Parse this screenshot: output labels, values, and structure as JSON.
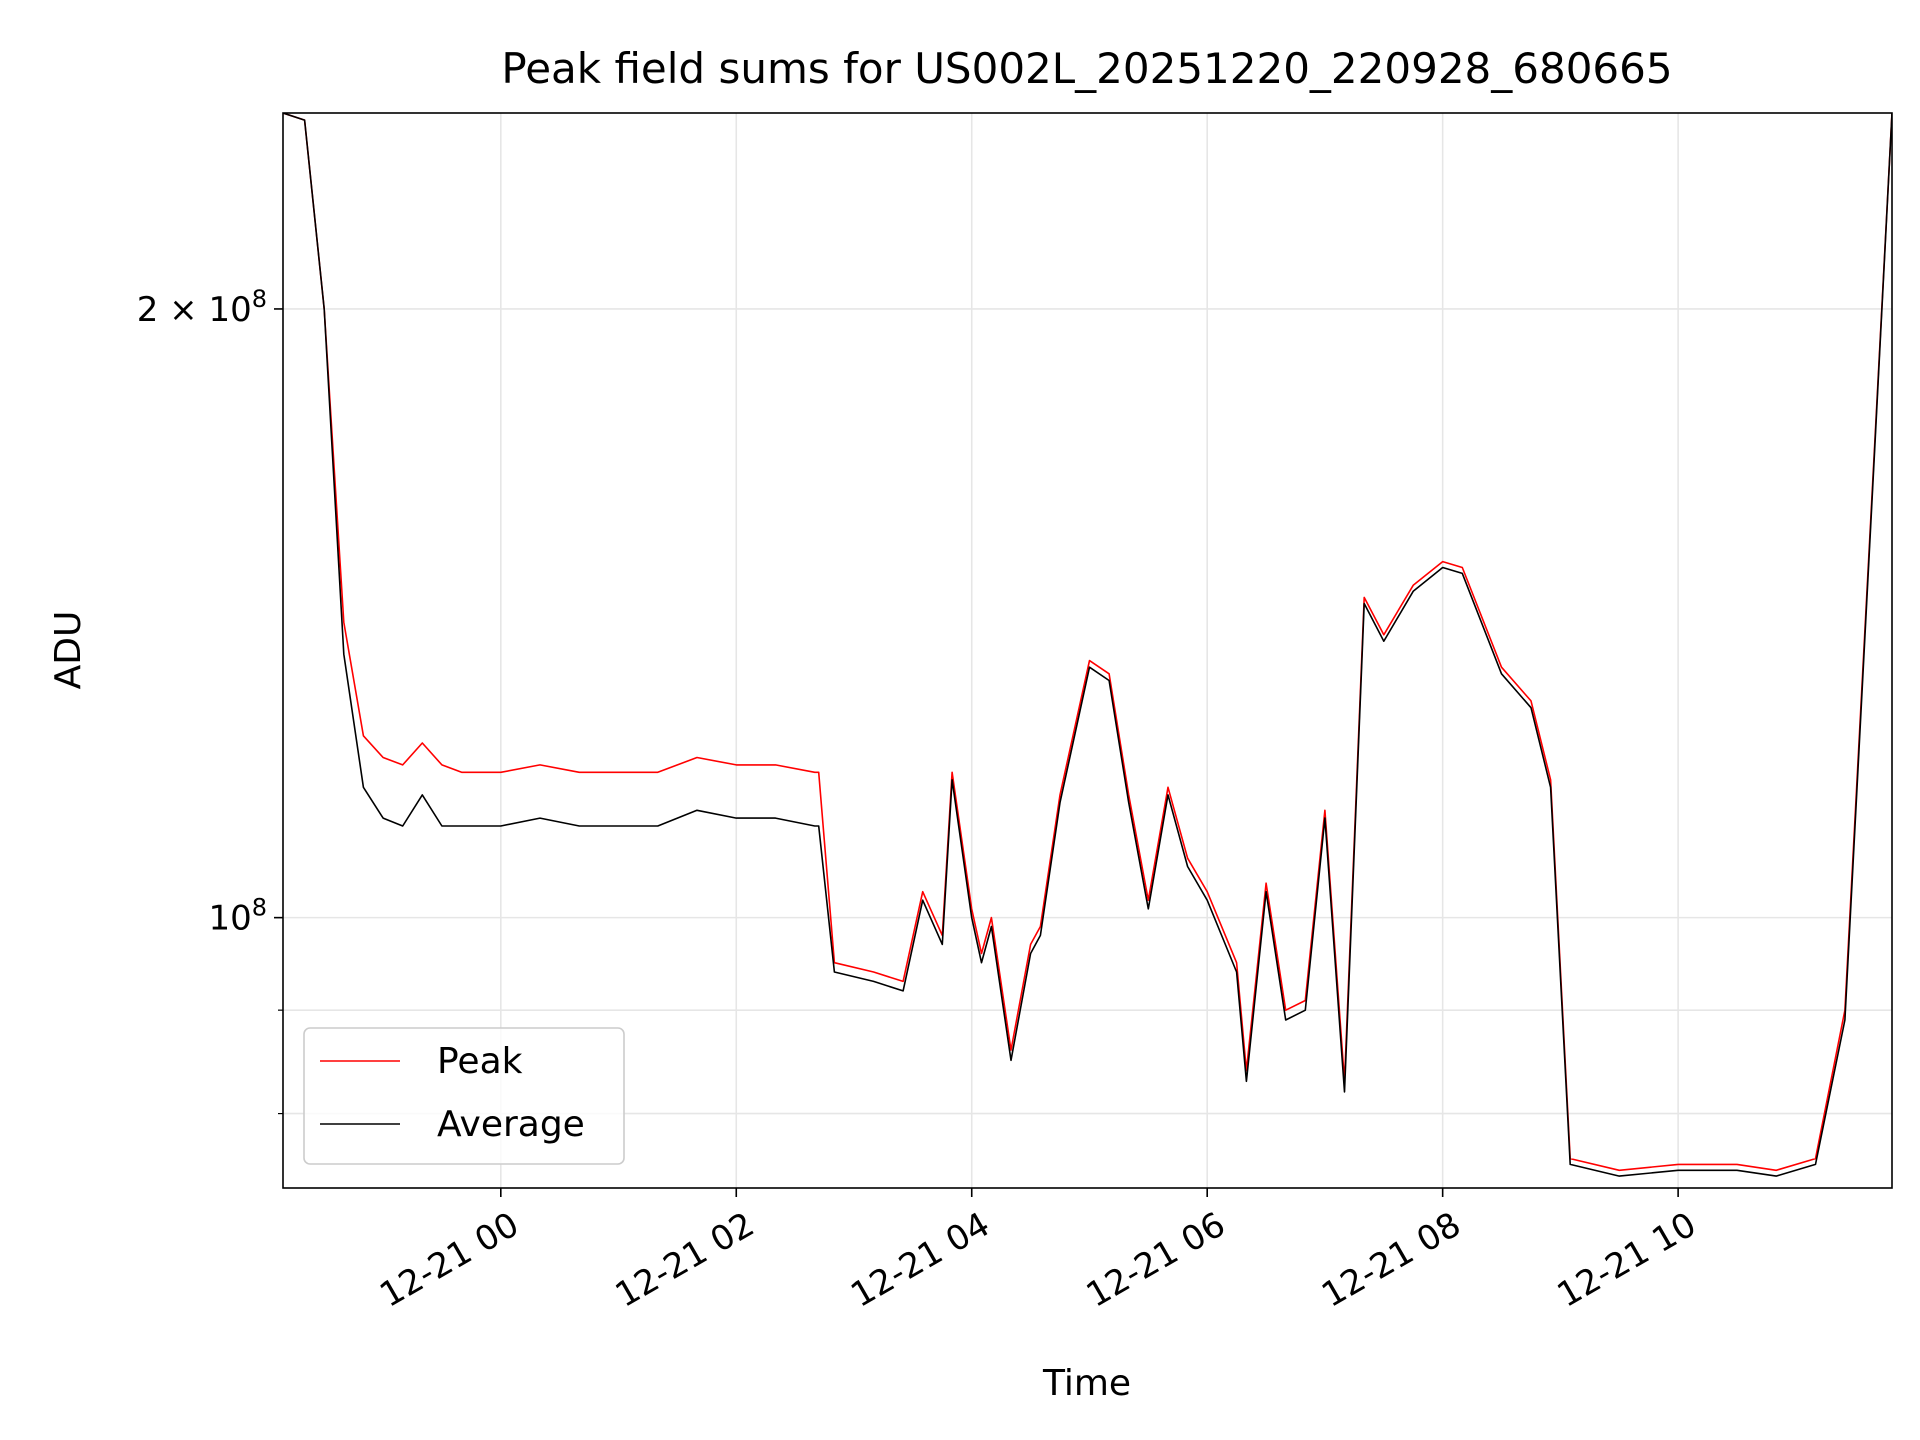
{
  "chart_data": {
    "type": "line",
    "title": "Peak field sums for US002L_20251220_220928_680665",
    "xlabel": "Time",
    "ylabel": "ADU",
    "y_scale": "log",
    "ylim": [
      73500000,
      250000000
    ],
    "xlim": [
      "2025-12-20 22:09",
      "2025-12-21 11:49"
    ],
    "grid": true,
    "legend_position": "lower left",
    "x_ticks": [
      {
        "t": "2025-12-21 00:00",
        "label": "12-21 00"
      },
      {
        "t": "2025-12-21 02:00",
        "label": "12-21 02"
      },
      {
        "t": "2025-12-21 04:00",
        "label": "12-21 04"
      },
      {
        "t": "2025-12-21 06:00",
        "label": "12-21 06"
      },
      {
        "t": "2025-12-21 08:00",
        "label": "12-21 08"
      },
      {
        "t": "2025-12-21 10:00",
        "label": "12-21 10"
      }
    ],
    "y_ticks": [
      {
        "value": 100000000,
        "label_base": "10",
        "label_exp": "8",
        "label_coef": ""
      },
      {
        "value": 200000000,
        "label_base": "10",
        "label_exp": "8",
        "label_coef": "2 × "
      }
    ],
    "y_minor_ticks": [
      80000000,
      90000000
    ],
    "series": [
      {
        "name": "Peak",
        "color": "#ff0000",
        "x": [
          "2025-12-20 22:09",
          "2025-12-20 22:20",
          "2025-12-20 22:30",
          "2025-12-20 22:40",
          "2025-12-20 22:50",
          "2025-12-20 23:00",
          "2025-12-20 23:10",
          "2025-12-20 23:20",
          "2025-12-20 23:30",
          "2025-12-20 23:40",
          "2025-12-20 23:50",
          "2025-12-21 00:00",
          "2025-12-21 00:20",
          "2025-12-21 00:40",
          "2025-12-21 01:00",
          "2025-12-21 01:20",
          "2025-12-21 01:40",
          "2025-12-21 02:00",
          "2025-12-21 02:20",
          "2025-12-21 02:40",
          "2025-12-21 02:42",
          "2025-12-21 02:50",
          "2025-12-21 03:10",
          "2025-12-21 03:25",
          "2025-12-21 03:35",
          "2025-12-21 03:45",
          "2025-12-21 03:50",
          "2025-12-21 04:00",
          "2025-12-21 04:05",
          "2025-12-21 04:10",
          "2025-12-21 04:20",
          "2025-12-21 04:30",
          "2025-12-21 04:35",
          "2025-12-21 04:45",
          "2025-12-21 05:00",
          "2025-12-21 05:10",
          "2025-12-21 05:20",
          "2025-12-21 05:30",
          "2025-12-21 05:40",
          "2025-12-21 05:50",
          "2025-12-21 06:00",
          "2025-12-21 06:15",
          "2025-12-21 06:20",
          "2025-12-21 06:30",
          "2025-12-21 06:40",
          "2025-12-21 06:50",
          "2025-12-21 07:00",
          "2025-12-21 07:10",
          "2025-12-21 07:20",
          "2025-12-21 07:30",
          "2025-12-21 07:45",
          "2025-12-21 08:00",
          "2025-12-21 08:10",
          "2025-12-21 08:30",
          "2025-12-21 08:45",
          "2025-12-21 08:55",
          "2025-12-21 09:05",
          "2025-12-21 09:30",
          "2025-12-21 10:00",
          "2025-12-21 10:30",
          "2025-12-21 10:50",
          "2025-12-21 11:10",
          "2025-12-21 11:25",
          "2025-12-21 11:40",
          "2025-12-21 11:49"
        ],
        "y": [
          250000000,
          248000000,
          200000000,
          140000000,
          123000000,
          120000000,
          119000000,
          122000000,
          119000000,
          118000000,
          118000000,
          118000000,
          119000000,
          118000000,
          118000000,
          118000000,
          120000000,
          119000000,
          119000000,
          118000000,
          118000000,
          95000000,
          94000000,
          93000000,
          103000000,
          98000000,
          118000000,
          101000000,
          96000000,
          100000000,
          86000000,
          97000000,
          99000000,
          115000000,
          134000000,
          132000000,
          115000000,
          102000000,
          116000000,
          107000000,
          103000000,
          95000000,
          84000000,
          104000000,
          90000000,
          91000000,
          113000000,
          83000000,
          144000000,
          138000000,
          146000000,
          150000000,
          149000000,
          133000000,
          128000000,
          117000000,
          76000000,
          75000000,
          75500000,
          75500000,
          75000000,
          76000000,
          90000000,
          170000000,
          250000000
        ]
      },
      {
        "name": "Average",
        "color": "#000000",
        "x": [
          "2025-12-20 22:09",
          "2025-12-20 22:20",
          "2025-12-20 22:30",
          "2025-12-20 22:40",
          "2025-12-20 22:50",
          "2025-12-20 23:00",
          "2025-12-20 23:10",
          "2025-12-20 23:20",
          "2025-12-20 23:30",
          "2025-12-20 23:40",
          "2025-12-20 23:50",
          "2025-12-21 00:00",
          "2025-12-21 00:20",
          "2025-12-21 00:40",
          "2025-12-21 01:00",
          "2025-12-21 01:20",
          "2025-12-21 01:40",
          "2025-12-21 02:00",
          "2025-12-21 02:20",
          "2025-12-21 02:40",
          "2025-12-21 02:42",
          "2025-12-21 02:50",
          "2025-12-21 03:10",
          "2025-12-21 03:25",
          "2025-12-21 03:35",
          "2025-12-21 03:45",
          "2025-12-21 03:50",
          "2025-12-21 04:00",
          "2025-12-21 04:05",
          "2025-12-21 04:10",
          "2025-12-21 04:20",
          "2025-12-21 04:30",
          "2025-12-21 04:35",
          "2025-12-21 04:45",
          "2025-12-21 05:00",
          "2025-12-21 05:10",
          "2025-12-21 05:20",
          "2025-12-21 05:30",
          "2025-12-21 05:40",
          "2025-12-21 05:50",
          "2025-12-21 06:00",
          "2025-12-21 06:15",
          "2025-12-21 06:20",
          "2025-12-21 06:30",
          "2025-12-21 06:40",
          "2025-12-21 06:50",
          "2025-12-21 07:00",
          "2025-12-21 07:10",
          "2025-12-21 07:20",
          "2025-12-21 07:30",
          "2025-12-21 07:45",
          "2025-12-21 08:00",
          "2025-12-21 08:10",
          "2025-12-21 08:30",
          "2025-12-21 08:45",
          "2025-12-21 08:55",
          "2025-12-21 09:05",
          "2025-12-21 09:30",
          "2025-12-21 10:00",
          "2025-12-21 10:30",
          "2025-12-21 10:50",
          "2025-12-21 11:10",
          "2025-12-21 11:25",
          "2025-12-21 11:40",
          "2025-12-21 11:49"
        ],
        "y": [
          250000000,
          248000000,
          200000000,
          135000000,
          116000000,
          112000000,
          111000000,
          115000000,
          111000000,
          111000000,
          111000000,
          111000000,
          112000000,
          111000000,
          111000000,
          111000000,
          113000000,
          112000000,
          112000000,
          111000000,
          111000000,
          94000000,
          93000000,
          92000000,
          102000000,
          97000000,
          117000000,
          100000000,
          95000000,
          99000000,
          85000000,
          96000000,
          98000000,
          114000000,
          133000000,
          131000000,
          114000000,
          101000000,
          115000000,
          106000000,
          102000000,
          94000000,
          83000000,
          103000000,
          89000000,
          90000000,
          112000000,
          82000000,
          143000000,
          137000000,
          145000000,
          149000000,
          148000000,
          132000000,
          127000000,
          116000000,
          75500000,
          74500000,
          75000000,
          75000000,
          74500000,
          75500000,
          89000000,
          169000000,
          250000000
        ]
      }
    ]
  }
}
